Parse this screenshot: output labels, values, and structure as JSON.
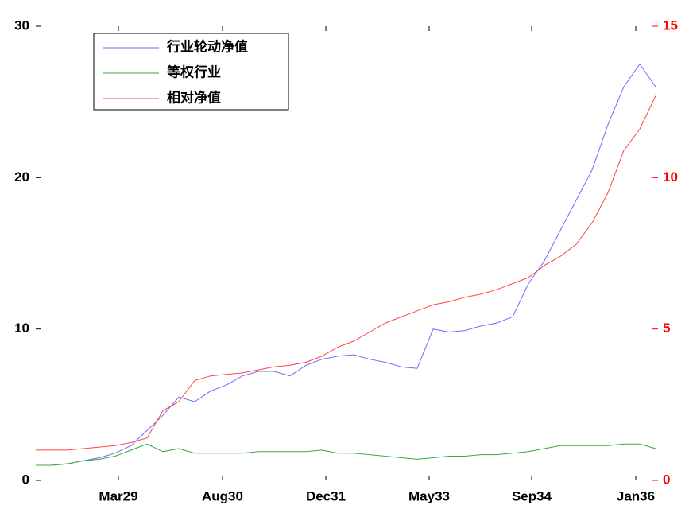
{
  "chart_data": {
    "type": "line",
    "x": [
      0,
      40,
      80,
      120,
      160,
      200,
      240,
      280,
      320,
      360,
      400,
      440,
      480,
      520,
      560,
      600,
      640,
      680,
      720,
      760,
      800,
      840,
      880,
      920,
      960,
      1000,
      1040,
      1080,
      1120,
      1160,
      1200,
      1240,
      1280,
      1320,
      1360,
      1400,
      1440,
      1480,
      1520,
      1560
    ],
    "xlim": [
      0,
      1562
    ],
    "xticks": [
      {
        "value": 208,
        "label": "Mar29"
      },
      {
        "value": 470,
        "label": "Aug30"
      },
      {
        "value": 730,
        "label": "Dec31"
      },
      {
        "value": 990,
        "label": "May33"
      },
      {
        "value": 1248,
        "label": "Sep34"
      },
      {
        "value": 1510,
        "label": "Jan36"
      }
    ],
    "ylim": [
      0,
      30
    ],
    "yticks": [
      0,
      10,
      20,
      30
    ],
    "y2lim": [
      0,
      15
    ],
    "y2ticks": [
      0,
      5,
      10,
      15
    ],
    "y2color": "#ff0000",
    "legend": "upper left",
    "series": [
      {
        "name": "行业轮动净值",
        "color": "#6a6aff",
        "values": [
          1.0,
          1.0,
          1.1,
          1.3,
          1.5,
          1.8,
          2.3,
          3.3,
          4.3,
          5.5,
          5.2,
          5.9,
          6.3,
          6.9,
          7.2,
          7.2,
          6.9,
          7.6,
          8.0,
          8.2,
          8.3,
          8.0,
          7.8,
          7.5,
          7.4,
          10.0,
          9.8,
          9.9,
          10.2,
          10.4,
          10.8,
          13.0,
          14.5,
          16.5,
          18.5,
          20.5,
          23.5,
          26.0,
          27.5,
          26.0
        ]
      },
      {
        "name": "等权行业",
        "color": "#3aa83a",
        "values": [
          1.0,
          1.0,
          1.1,
          1.3,
          1.4,
          1.6,
          2.0,
          2.4,
          1.9,
          2.1,
          1.8,
          1.8,
          1.8,
          1.8,
          1.9,
          1.9,
          1.9,
          1.9,
          2.0,
          1.8,
          1.8,
          1.7,
          1.6,
          1.5,
          1.4,
          1.5,
          1.6,
          1.6,
          1.7,
          1.7,
          1.8,
          1.9,
          2.1,
          2.3,
          2.3,
          2.3,
          2.3,
          2.4,
          2.4,
          2.1
        ]
      },
      {
        "name": "相对净值",
        "color": "#ff4444",
        "axis": "y2",
        "values": [
          1.0,
          1.0,
          1.0,
          1.05,
          1.1,
          1.15,
          1.25,
          1.4,
          2.3,
          2.6,
          3.3,
          3.45,
          3.5,
          3.55,
          3.65,
          3.75,
          3.8,
          3.9,
          4.1,
          4.4,
          4.6,
          4.9,
          5.2,
          5.4,
          5.6,
          5.8,
          5.9,
          6.05,
          6.15,
          6.3,
          6.5,
          6.7,
          7.1,
          7.4,
          7.8,
          8.5,
          9.5,
          10.9,
          11.6,
          12.7
        ]
      }
    ]
  }
}
